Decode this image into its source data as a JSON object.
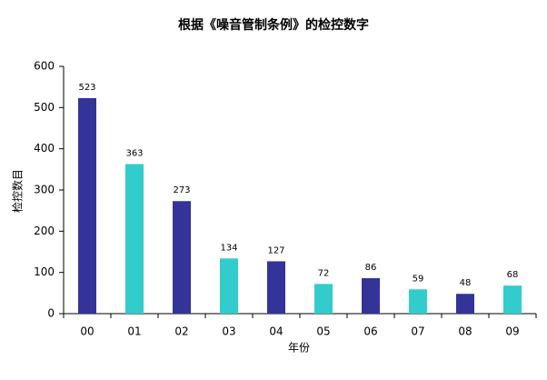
{
  "chart_data": {
    "type": "bar",
    "title": "根据《噪音管制条例》的检控数字",
    "x_label": "年份",
    "y_label": "检控数目",
    "categories": [
      "00",
      "01",
      "02",
      "03",
      "04",
      "05",
      "06",
      "07",
      "08",
      "09"
    ],
    "values": [
      523,
      363,
      273,
      134,
      127,
      72,
      86,
      59,
      48,
      68
    ],
    "colors": [
      "#333399",
      "#33cccc",
      "#333399",
      "#33cccc",
      "#333399",
      "#33cccc",
      "#333399",
      "#33cccc",
      "#333399",
      "#33cccc"
    ],
    "ylim": [
      0,
      600
    ],
    "yticks": [
      0,
      100,
      200,
      300,
      400,
      500,
      600
    ],
    "grid": false
  }
}
